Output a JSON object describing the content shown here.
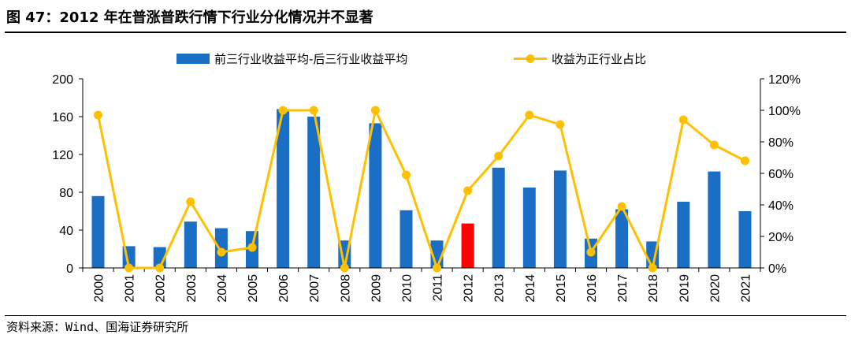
{
  "title": "图 47：2012 年在普涨普跌行情下行业分化情况并不显著",
  "source": "资料来源：Wind、国海证券研究所",
  "colors": {
    "bar": "#1a6fc4",
    "bar_highlight": "#ff0000",
    "line": "#ffc000",
    "axis": "#000000"
  },
  "chart_data": {
    "type": "bar",
    "title": "",
    "categories": [
      "2000",
      "2001",
      "2002",
      "2003",
      "2004",
      "2005",
      "2006",
      "2007",
      "2008",
      "2009",
      "2010",
      "2011",
      "2012",
      "2013",
      "2014",
      "2015",
      "2016",
      "2017",
      "2018",
      "2019",
      "2020",
      "2021"
    ],
    "highlight_category": "2012",
    "series": [
      {
        "name": "前三行业收益平均-后三行业收益平均",
        "type": "bar",
        "axis": "left",
        "values": [
          76,
          23,
          22,
          49,
          42,
          39,
          168,
          160,
          29,
          153,
          61,
          29,
          47,
          106,
          85,
          103,
          31,
          62,
          28,
          70,
          102,
          60
        ]
      },
      {
        "name": "收益为正行业占比",
        "type": "line",
        "axis": "right",
        "values": [
          97,
          0,
          0,
          42,
          10,
          13,
          100,
          100,
          0,
          100,
          59,
          0,
          49,
          71,
          97,
          91,
          10,
          39,
          0,
          94,
          78,
          68
        ]
      }
    ],
    "y_left": {
      "lim": [
        0,
        200
      ],
      "ticks": [
        0,
        40,
        80,
        120,
        160,
        200
      ],
      "tick_labels": [
        "0",
        "40",
        "80",
        "120",
        "160",
        "200"
      ]
    },
    "y_right": {
      "lim": [
        0,
        120
      ],
      "ticks": [
        0,
        20,
        40,
        60,
        80,
        100,
        120
      ],
      "tick_labels": [
        "0%",
        "20%",
        "40%",
        "60%",
        "80%",
        "100%",
        "120%"
      ]
    },
    "legend_position": "top",
    "grid": false
  }
}
